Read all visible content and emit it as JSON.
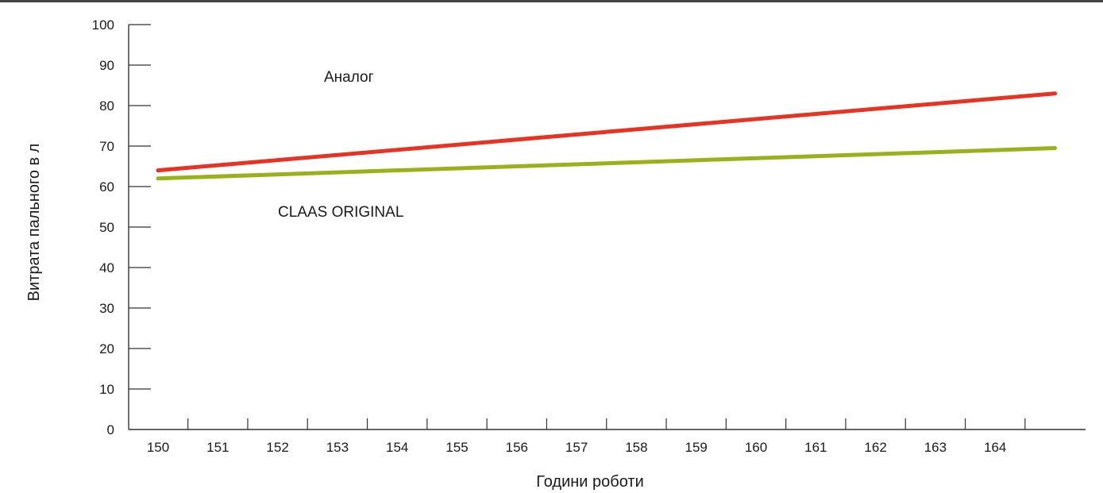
{
  "chart_data": {
    "type": "line",
    "title": "",
    "xlabel": "Години роботи",
    "ylabel": "Витрата пального в л",
    "x_ticks": [
      "150",
      "151",
      "152",
      "153",
      "154",
      "155",
      "156",
      "157",
      "158",
      "159",
      "160",
      "161",
      "162",
      "163",
      "164"
    ],
    "xlim": [
      150,
      165
    ],
    "ylim": [
      0,
      100
    ],
    "y_ticks": [
      "0",
      "10",
      "20",
      "30",
      "40",
      "50",
      "60",
      "70",
      "80",
      "90",
      "100"
    ],
    "grid": false,
    "series": [
      {
        "name": "Аналог",
        "x": [
          150,
          165
        ],
        "y": [
          64,
          83
        ],
        "color": "#e63323"
      },
      {
        "name": "CLAAS ORIGINAL",
        "x": [
          150,
          165
        ],
        "y": [
          62,
          69.5
        ],
        "color": "#9ab11c"
      }
    ]
  }
}
